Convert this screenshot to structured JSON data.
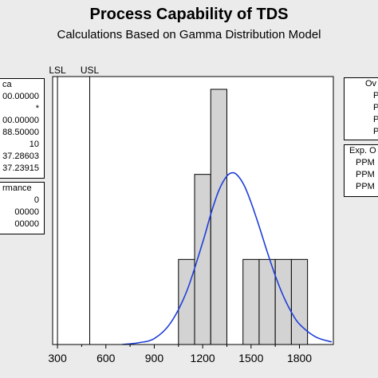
{
  "chart_data": {
    "type": "bar",
    "title": "Process Capability of TDS",
    "subtitle": "Calculations Based on Gamma Distribution Model",
    "spec_lines": [
      {
        "label": "LSL",
        "x": 300
      },
      {
        "label": "USL",
        "x": 500
      }
    ],
    "xlim": [
      270,
      2010
    ],
    "ylim": [
      0,
      3.15
    ],
    "xticks": [
      300,
      600,
      900,
      1200,
      1500,
      1800
    ],
    "bins": [
      {
        "start": 1050,
        "end": 1150,
        "count": 1
      },
      {
        "start": 1150,
        "end": 1250,
        "count": 2
      },
      {
        "start": 1250,
        "end": 1350,
        "count": 3
      },
      {
        "start": 1350,
        "end": 1450,
        "count": 0
      },
      {
        "start": 1450,
        "end": 1550,
        "count": 1
      },
      {
        "start": 1550,
        "end": 1650,
        "count": 1
      },
      {
        "start": 1650,
        "end": 1750,
        "count": 1
      },
      {
        "start": 1750,
        "end": 1850,
        "count": 1
      }
    ],
    "fit_curve": {
      "shape": 37.23915,
      "scale": 37.28603,
      "x": [
        700,
        800,
        900,
        1000,
        1100,
        1200,
        1250,
        1300,
        1350,
        1388,
        1420,
        1460,
        1500,
        1550,
        1600,
        1650,
        1700,
        1750,
        1800,
        1900,
        2000
      ],
      "y": [
        0.0,
        0.02,
        0.07,
        0.25,
        0.62,
        1.2,
        1.53,
        1.81,
        1.98,
        2.02,
        1.98,
        1.86,
        1.67,
        1.39,
        1.09,
        0.81,
        0.57,
        0.38,
        0.24,
        0.09,
        0.03
      ]
    }
  },
  "left_panel": {
    "process_data": {
      "header": "ca",
      "rows": [
        "00.00000",
        "*",
        "00.00000",
        "88.50000",
        "10",
        "37.28603",
        "37.23915"
      ]
    },
    "performance": {
      "header": "rmance",
      "rows": [
        "0",
        "00000",
        "00000"
      ]
    }
  },
  "right_panel": {
    "overall": {
      "header": "Ov",
      "rows": [
        "P",
        "P",
        "P",
        "P"
      ]
    },
    "expected": {
      "header": "Exp. O",
      "rows": [
        "PPM",
        "PPM",
        "PPM"
      ]
    }
  },
  "colors": {
    "bar_fill": "#d3d3d3",
    "bar_stroke": "#000000",
    "curve": "#1f3ed9",
    "spec_line": "#000000",
    "frame": "#ebebeb"
  }
}
